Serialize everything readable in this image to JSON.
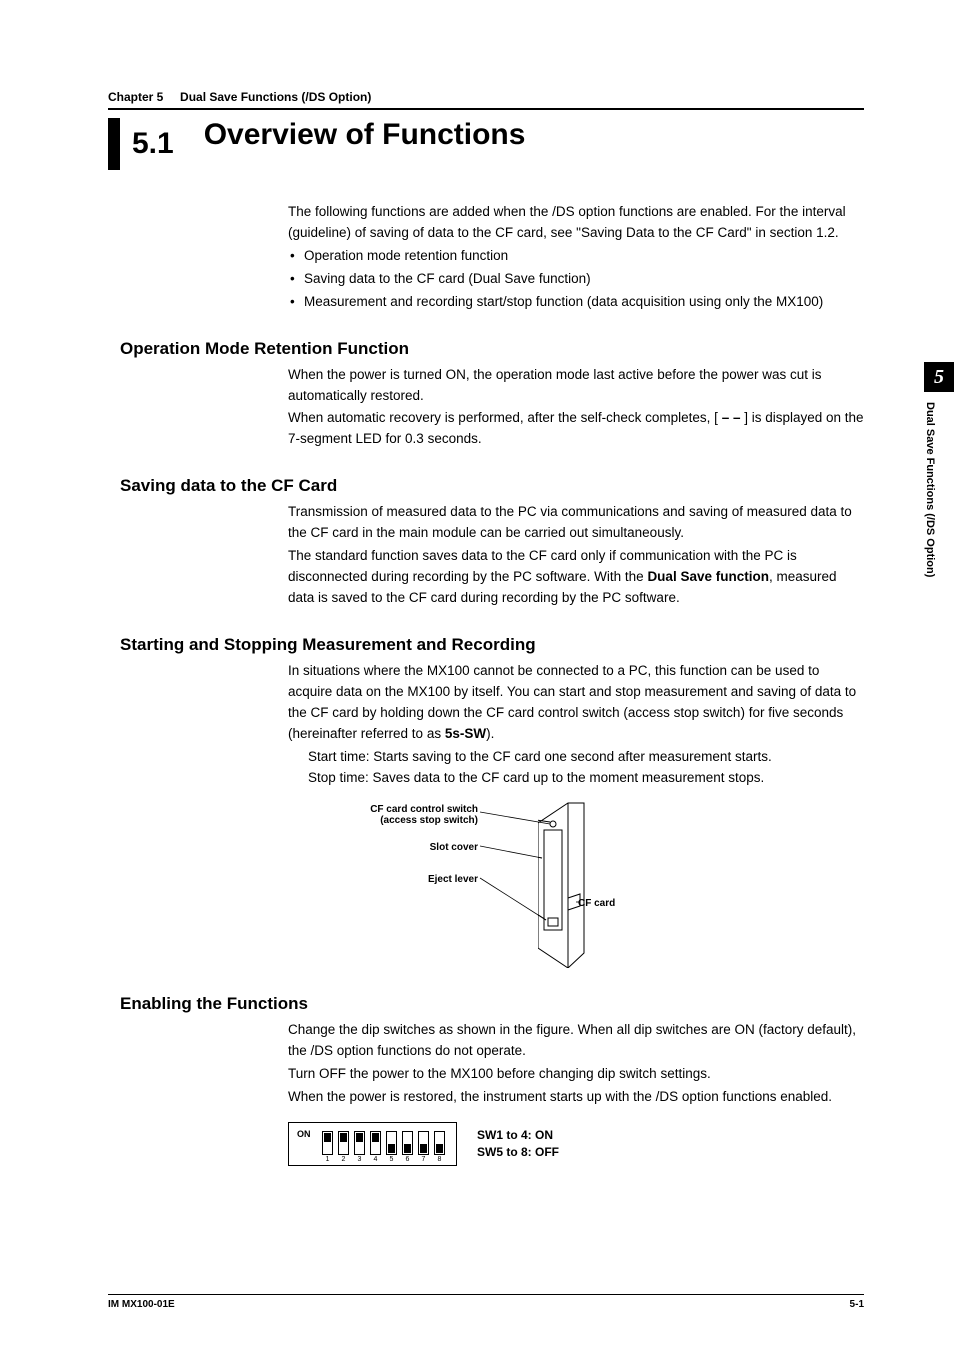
{
  "colors": {
    "text": "#000000",
    "bg": "#ffffff",
    "rule": "#000000"
  },
  "header": {
    "chapter_label": "Chapter 5",
    "chapter_title": "Dual Save Functions (/DS Option)"
  },
  "title": {
    "number": "5.1",
    "text": "Overview of Functions"
  },
  "intro": {
    "p1": "The following functions are added when the /DS option functions are enabled. For the interval (guideline) of saving of data to the CF card, see \"Saving Data to the CF Card\" in section 1.2.",
    "bullets": [
      "Operation mode retention function",
      "Saving data to the CF card (Dual Save function)",
      "Measurement and recording start/stop function (data acquisition using only the MX100)"
    ]
  },
  "sections": {
    "opmode": {
      "heading": "Operation Mode Retention Function",
      "p1": "When the power is turned ON, the operation mode last active before the power was cut is automatically restored.",
      "p2_a": "When automatic recovery is performed, after the self-check completes, [ ",
      "p2_dash": "– –",
      "p2_b": " ] is displayed on the 7-segment LED for 0.3 seconds."
    },
    "saving": {
      "heading": "Saving data to the CF Card",
      "p1": "Transmission of measured data to the PC via communications and saving of measured data to the CF card in the main module can be carried out simultaneously.",
      "p2_a": "The standard function saves data to the CF card only if communication with the PC is disconnected during recording by the PC software. With the ",
      "p2_bold": "Dual Save function",
      "p2_b": ", measured data is saved to the CF card during recording by the PC software."
    },
    "startstop": {
      "heading": "Starting and Stopping Measurement and Recording",
      "p1_a": "In situations where the MX100 cannot be connected to a PC, this function can be used to acquire data on the MX100 by itself. You can start and stop measurement and saving of data to the CF card by holding down the CF card control switch (access stop switch) for five seconds (hereinafter referred to as ",
      "p1_bold": "5s-SW",
      "p1_b": ").",
      "sub1": "Start time: Starts saving to the CF card one second after measurement starts.",
      "sub2": "Stop time: Saves data to the CF card up to the moment measurement stops."
    },
    "diagram": {
      "lbl_switch_l1": "CF card control switch",
      "lbl_switch_l2": "(access stop switch)",
      "lbl_slot": "Slot cover",
      "lbl_eject": "Eject lever",
      "lbl_card": "CF card"
    },
    "enable": {
      "heading": "Enabling the Functions",
      "p1": "Change the dip switches as shown in the figure. When all dip switches are ON (factory default), the /DS option functions do not operate.",
      "p2": "Turn OFF the power to the MX100 before changing dip switch settings.",
      "p3": "When the power is restored, the instrument starts up with the /DS option functions enabled."
    },
    "dip": {
      "on_label": "ON",
      "switches": [
        {
          "num": "1",
          "state": "on"
        },
        {
          "num": "2",
          "state": "on"
        },
        {
          "num": "3",
          "state": "on"
        },
        {
          "num": "4",
          "state": "on"
        },
        {
          "num": "5",
          "state": "off"
        },
        {
          "num": "6",
          "state": "off"
        },
        {
          "num": "7",
          "state": "off"
        },
        {
          "num": "8",
          "state": "off"
        }
      ],
      "caption_l1": "SW1 to 4: ON",
      "caption_l2": "SW5 to 8: OFF"
    }
  },
  "side_tab": {
    "chapter_num": "5",
    "vert_text": "Dual Save Functions (/DS Option)"
  },
  "footer": {
    "left": "IM MX100-01E",
    "right": "5-1"
  }
}
